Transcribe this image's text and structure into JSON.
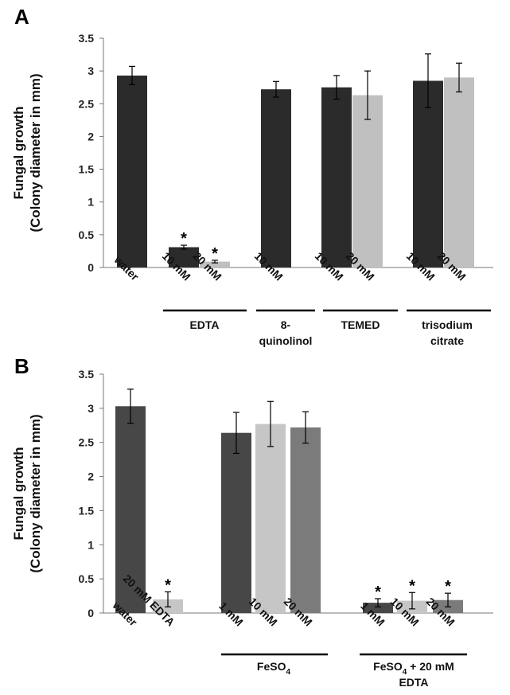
{
  "chart_data": [
    {
      "type": "bar",
      "panel": "A",
      "ylabel_line1": "Fungal growth",
      "ylabel_line2": "(Colony diameter in mm)",
      "ylim": [
        0,
        3.5
      ],
      "yticks": [
        "0",
        "0.5",
        "1",
        "1.5",
        "2",
        "2.5",
        "3",
        "3.5"
      ],
      "colors": {
        "dark": "#2b2b2b",
        "light": "#c0c0c0"
      },
      "bars": [
        {
          "label": "water",
          "value": 2.93,
          "error": 0.14,
          "shade": "dark",
          "star": ""
        },
        {
          "label": "10 mM",
          "value": 0.31,
          "error": 0.03,
          "shade": "dark",
          "star": "*"
        },
        {
          "label": "20 mM",
          "value": 0.09,
          "error": 0.02,
          "shade": "light",
          "star": "*"
        },
        {
          "label": "10 mM",
          "value": 2.72,
          "error": 0.12,
          "shade": "dark",
          "star": ""
        },
        {
          "label": "10 mM",
          "value": 2.75,
          "error": 0.18,
          "shade": "dark",
          "star": ""
        },
        {
          "label": "20 mM",
          "value": 2.63,
          "error": 0.37,
          "shade": "light",
          "star": ""
        },
        {
          "label": "10 mM",
          "value": 2.85,
          "error": 0.41,
          "shade": "dark",
          "star": ""
        },
        {
          "label": "20 mM",
          "value": 2.9,
          "error": 0.22,
          "shade": "light",
          "star": ""
        }
      ],
      "groups": [
        {
          "line1": "EDTA",
          "line2": ""
        },
        {
          "line1": "8-",
          "line2": "quinolinol"
        },
        {
          "line1": "TEMED",
          "line2": ""
        },
        {
          "line1": "trisodium",
          "line2": "citrate"
        }
      ]
    },
    {
      "type": "bar",
      "panel": "B",
      "ylabel_line1": "Fungal growth",
      "ylabel_line2": "(Colony diameter in mm)",
      "ylim": [
        0,
        3.5
      ],
      "yticks": [
        "0",
        "0.5",
        "1",
        "1.5",
        "2",
        "2.5",
        "3",
        "3.5"
      ],
      "colors": {
        "dark": "#474747",
        "light": "#c6c6c6",
        "mid": "#7b7b7b"
      },
      "bars": [
        {
          "label": "water",
          "value": 3.03,
          "error": 0.25,
          "shade": "dark",
          "star": ""
        },
        {
          "label": "20 mM EDTA",
          "value": 0.2,
          "error": 0.11,
          "shade": "light",
          "star": "*"
        },
        {
          "label": "1 mM",
          "value": 2.64,
          "error": 0.3,
          "shade": "dark",
          "star": ""
        },
        {
          "label": "10 mM",
          "value": 2.77,
          "error": 0.33,
          "shade": "light",
          "star": ""
        },
        {
          "label": "20 mM",
          "value": 2.72,
          "error": 0.23,
          "shade": "mid",
          "star": ""
        },
        {
          "label": "1 mM",
          "value": 0.15,
          "error": 0.06,
          "shade": "dark",
          "star": "*"
        },
        {
          "label": "10 mM",
          "value": 0.18,
          "error": 0.12,
          "shade": "light",
          "star": "*"
        },
        {
          "label": "20 mM",
          "value": 0.19,
          "error": 0.1,
          "shade": "mid",
          "star": "*"
        }
      ],
      "groups": [
        {
          "line1": "FeSO",
          "sub": "4",
          "tail": ""
        },
        {
          "line1": "FeSO",
          "sub": "4",
          "tail": " + 20 mM",
          "line2": "EDTA"
        }
      ]
    }
  ]
}
